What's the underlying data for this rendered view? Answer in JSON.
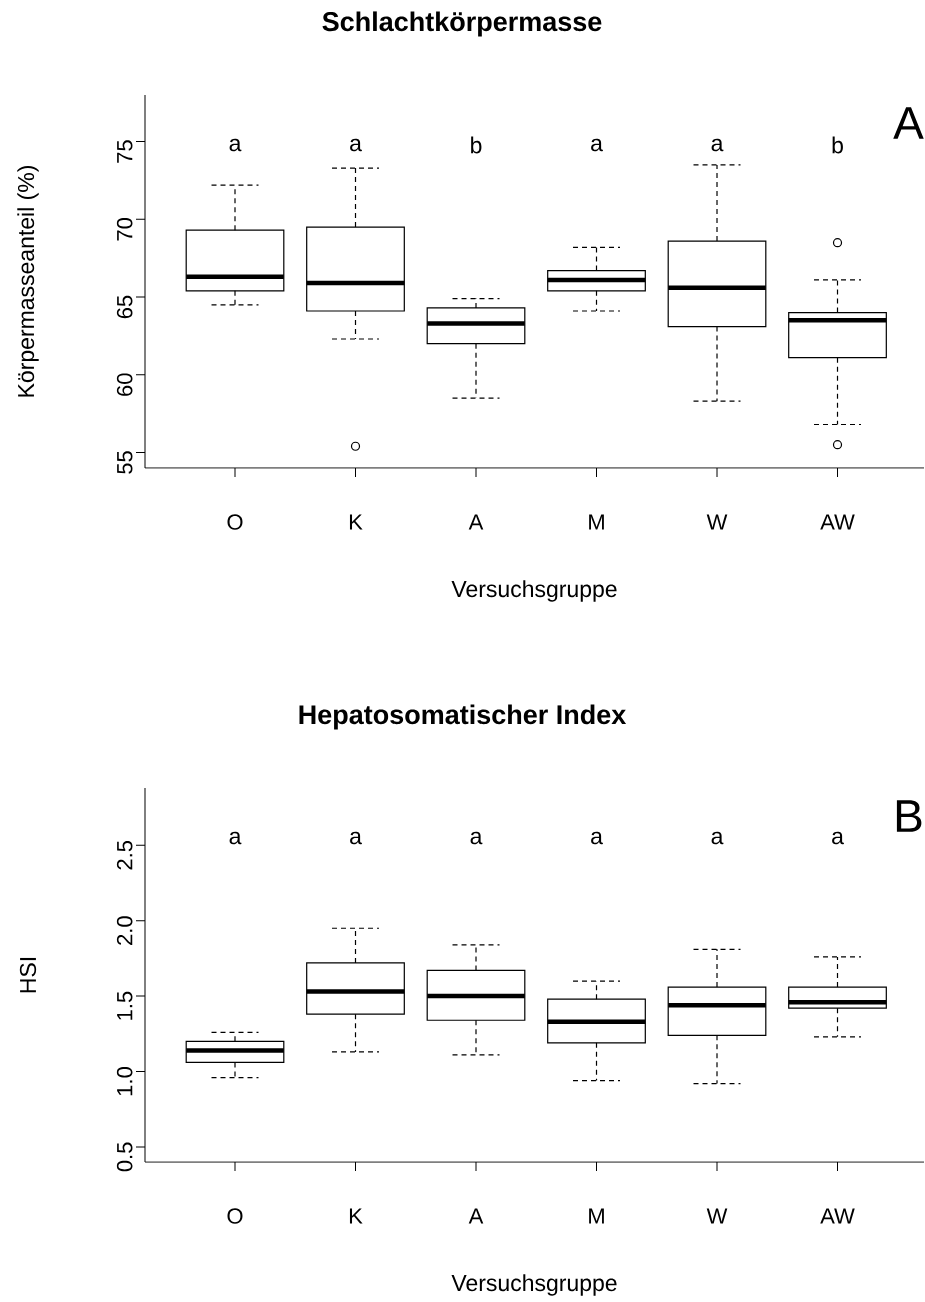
{
  "chart_data": [
    {
      "type": "box",
      "title": "Schlachtkörpermasse",
      "xlabel": "Versuchsgruppe",
      "ylabel": "Körpermasseanteil (%)",
      "categories": [
        "O",
        "K",
        "A",
        "M",
        "W",
        "AW"
      ],
      "boxes": [
        {
          "low": 64.5,
          "q1": 65.4,
          "median": 66.3,
          "q3": 69.3,
          "high": 72.2
        },
        {
          "low": 62.3,
          "q1": 64.1,
          "median": 65.9,
          "q3": 69.5,
          "high": 73.3,
          "outliers": [
            55.4
          ]
        },
        {
          "low": 58.5,
          "q1": 62.0,
          "median": 63.3,
          "q3": 64.3,
          "high": 64.9
        },
        {
          "low": 64.1,
          "q1": 65.4,
          "median": 66.1,
          "q3": 66.7,
          "high": 68.2
        },
        {
          "low": 58.3,
          "q1": 63.1,
          "median": 65.6,
          "q3": 68.6,
          "high": 73.5
        },
        {
          "low": 56.8,
          "q1": 61.1,
          "median": 63.5,
          "q3": 64.0,
          "high": 66.1,
          "outliers": [
            68.5,
            55.5
          ]
        }
      ],
      "ylim": [
        54.0,
        78.0
      ],
      "yticks": [
        55,
        60,
        65,
        70,
        75
      ],
      "annotations": [
        "A",
        "a",
        "a",
        "b",
        "a",
        "a",
        "b"
      ]
    },
    {
      "type": "box",
      "title": "Hepatosomatischer Index",
      "xlabel": "Versuchsgruppe",
      "ylabel": "HSI",
      "categories": [
        "O",
        "K",
        "A",
        "M",
        "W",
        "AW"
      ],
      "boxes": [
        {
          "low": 0.96,
          "q1": 1.06,
          "median": 1.14,
          "q3": 1.2,
          "high": 1.26
        },
        {
          "low": 1.13,
          "q1": 1.38,
          "median": 1.53,
          "q3": 1.72,
          "high": 1.95
        },
        {
          "low": 1.11,
          "q1": 1.34,
          "median": 1.5,
          "q3": 1.67,
          "high": 1.84
        },
        {
          "low": 0.94,
          "q1": 1.19,
          "median": 1.33,
          "q3": 1.48,
          "high": 1.6
        },
        {
          "low": 0.92,
          "q1": 1.24,
          "median": 1.44,
          "q3": 1.56,
          "high": 1.81
        },
        {
          "low": 1.23,
          "q1": 1.42,
          "median": 1.46,
          "q3": 1.56,
          "high": 1.76
        }
      ],
      "ylim": [
        0.4,
        2.88
      ],
      "yticks": [
        0.5,
        {
          "value": 1.0,
          "label": "1.0"
        },
        1.5,
        {
          "value": 2.0,
          "label": "2.0"
        },
        2.5
      ],
      "annotations": [
        "B",
        "a",
        "a",
        "a",
        "a",
        "a",
        "a"
      ]
    }
  ]
}
